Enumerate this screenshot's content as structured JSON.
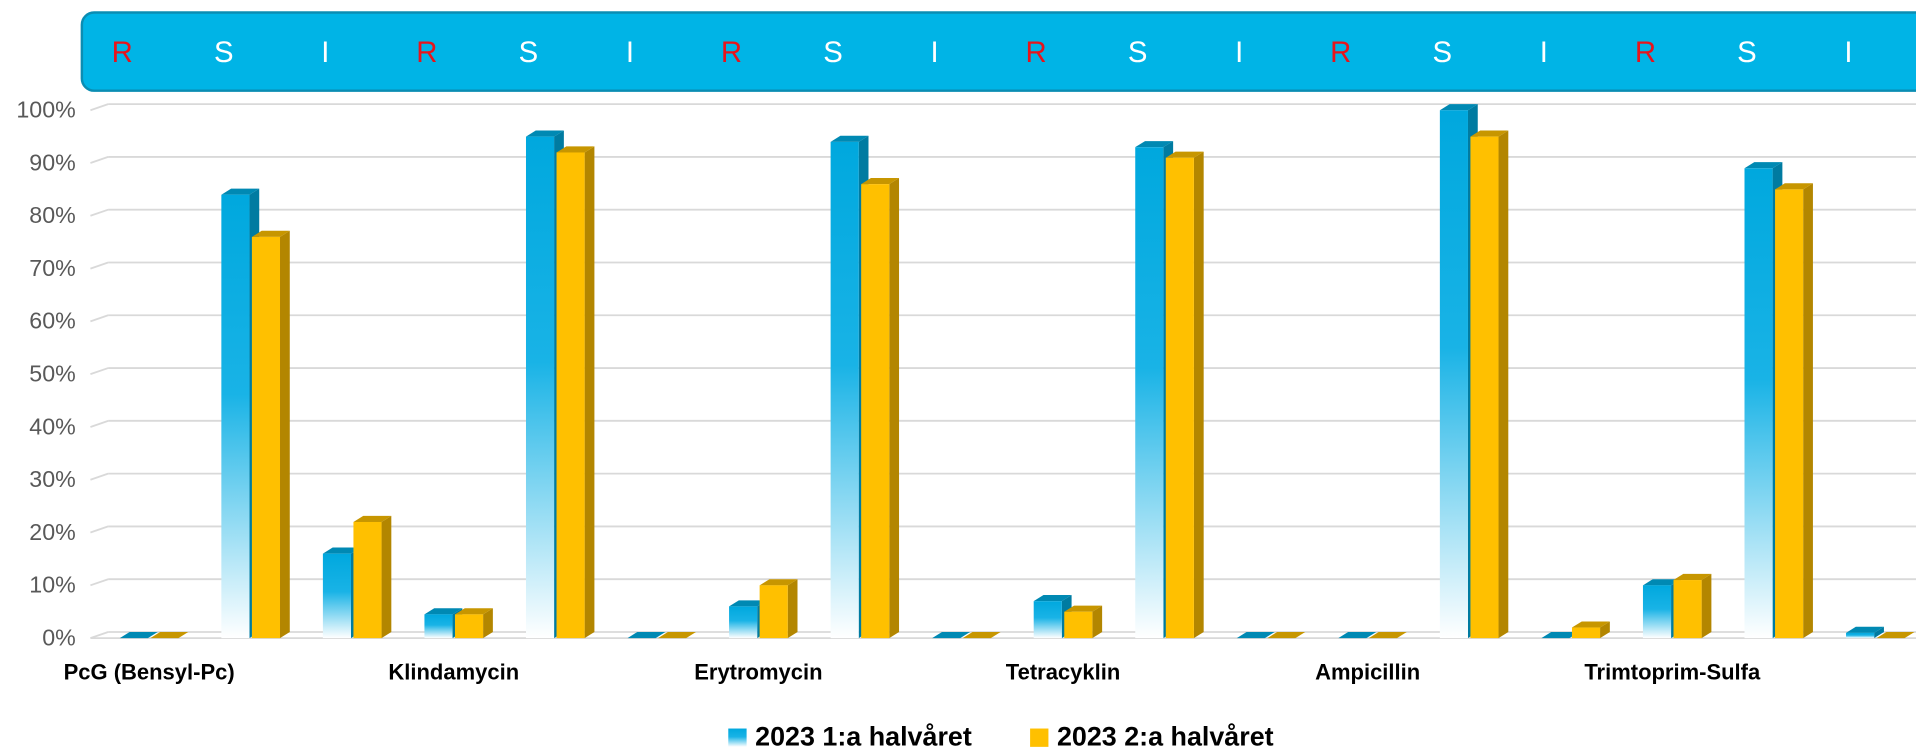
{
  "chart_data": {
    "type": "bar3d",
    "categories": [
      "R",
      "S",
      "I",
      "R",
      "S",
      "I",
      "R",
      "S",
      "I",
      "R",
      "S",
      "I",
      "R",
      "S",
      "I",
      "R",
      "S",
      "I"
    ],
    "groups": [
      "PcG (Bensyl-Pc)",
      "Klindamycin",
      "Erytromycin",
      "Tetracyklin",
      "Ampicillin",
      "Trimtoprim-Sulfa"
    ],
    "series": [
      {
        "name": "2023 1:a halvåret",
        "color": "#00b0e6",
        "values": [
          0,
          84,
          16,
          4.5,
          95,
          0,
          6,
          94,
          0,
          7,
          93,
          0,
          0,
          100,
          0,
          10,
          89,
          1
        ]
      },
      {
        "name": "2023 2:a halvåret",
        "color": "#ffc000",
        "values": [
          0,
          76,
          22,
          4.5,
          92,
          0,
          10,
          86,
          0,
          5,
          91,
          0,
          0,
          95,
          2,
          11,
          85,
          0
        ]
      }
    ],
    "ylim": [
      0,
      100
    ],
    "yticks": [
      {
        "value": 0,
        "label": "0%"
      },
      {
        "value": 10,
        "label": "10%"
      },
      {
        "value": 20,
        "label": "20%"
      },
      {
        "value": 30,
        "label": "30%"
      },
      {
        "value": 40,
        "label": "40%"
      },
      {
        "value": 50,
        "label": "50%"
      },
      {
        "value": 60,
        "label": "60%"
      },
      {
        "value": 70,
        "label": "70%"
      },
      {
        "value": 80,
        "label": "80%"
      },
      {
        "value": 90,
        "label": "90%"
      },
      {
        "value": 100,
        "label": "100%"
      }
    ],
    "grid": true,
    "category_colors": {
      "R": "#e8141b",
      "S": "#ffffff",
      "I": "#ffffff"
    }
  }
}
